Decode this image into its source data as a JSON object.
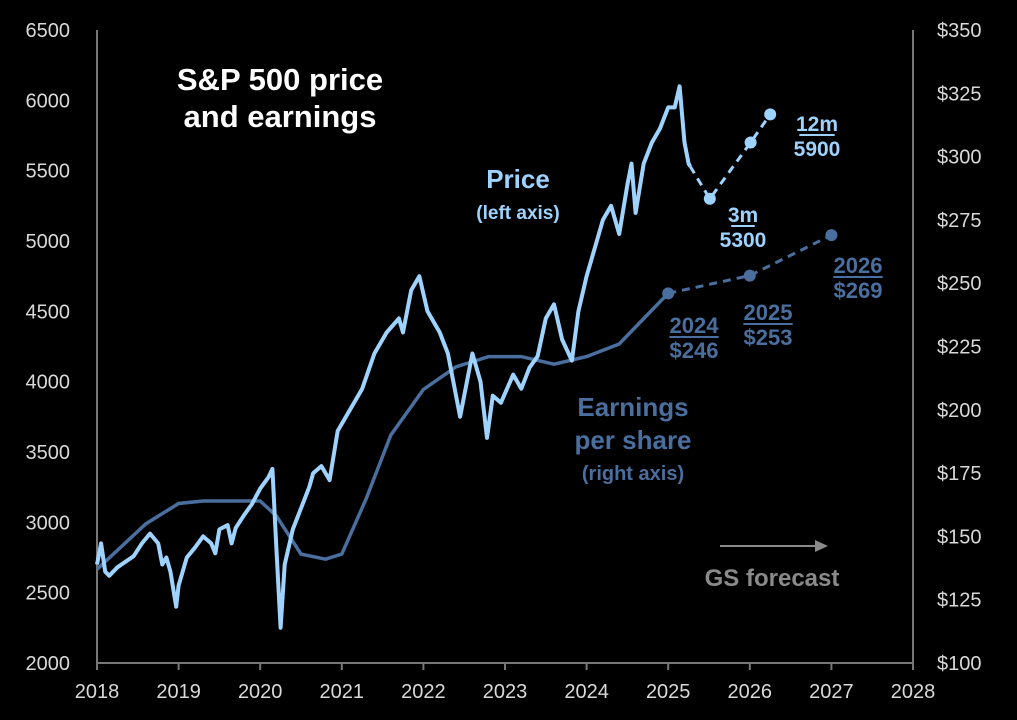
{
  "chart_data": {
    "type": "line",
    "title": [
      "S&P 500 price",
      "and earnings"
    ],
    "x_axis": {
      "min": 2018,
      "max": 2028,
      "ticks": [
        "2018",
        "2019",
        "2020",
        "2021",
        "2022",
        "2023",
        "2024",
        "2025",
        "2026",
        "2027",
        "2028"
      ]
    },
    "left_axis": {
      "min": 2000,
      "max": 6500,
      "ticks": [
        "2000",
        "2500",
        "3000",
        "3500",
        "4000",
        "4500",
        "5000",
        "5500",
        "6000",
        "6500"
      ]
    },
    "right_axis": {
      "min": 100,
      "max": 350,
      "ticks": [
        "$100",
        "$125",
        "$150",
        "$175",
        "$200",
        "$225",
        "$250",
        "$275",
        "$300",
        "$325",
        "$350"
      ]
    },
    "grid": false,
    "series": [
      {
        "name": "Price",
        "sublabel": "(left axis)",
        "axis": "left",
        "color": "#9fd3ff",
        "x": [
          2018.0,
          2018.05,
          2018.1,
          2018.15,
          2018.25,
          2018.35,
          2018.45,
          2018.55,
          2018.65,
          2018.75,
          2018.8,
          2018.85,
          2018.9,
          2018.97,
          2019.0,
          2019.1,
          2019.2,
          2019.3,
          2019.4,
          2019.45,
          2019.5,
          2019.6,
          2019.65,
          2019.7,
          2019.8,
          2019.9,
          2020.0,
          2020.1,
          2020.15,
          2020.2,
          2020.25,
          2020.3,
          2020.4,
          2020.5,
          2020.6,
          2020.65,
          2020.75,
          2020.85,
          2020.95,
          2021.1,
          2021.25,
          2021.4,
          2021.55,
          2021.7,
          2021.75,
          2021.85,
          2021.95,
          2022.05,
          2022.2,
          2022.3,
          2022.45,
          2022.5,
          2022.6,
          2022.7,
          2022.78,
          2022.85,
          2022.95,
          2023.1,
          2023.2,
          2023.3,
          2023.4,
          2023.5,
          2023.6,
          2023.7,
          2023.82,
          2023.9,
          2024.0,
          2024.1,
          2024.2,
          2024.3,
          2024.4,
          2024.5,
          2024.55,
          2024.6,
          2024.7,
          2024.8,
          2024.9,
          2025.0,
          2025.08,
          2025.14,
          2025.2,
          2025.25,
          2025.27
        ],
        "y": [
          2700,
          2850,
          2650,
          2620,
          2680,
          2720,
          2760,
          2850,
          2920,
          2850,
          2700,
          2750,
          2650,
          2400,
          2550,
          2750,
          2820,
          2900,
          2850,
          2780,
          2950,
          2980,
          2850,
          2960,
          3050,
          3130,
          3240,
          3320,
          3380,
          2800,
          2250,
          2700,
          2950,
          3100,
          3250,
          3350,
          3400,
          3300,
          3650,
          3800,
          3950,
          4200,
          4350,
          4450,
          4350,
          4650,
          4750,
          4500,
          4350,
          4200,
          3750,
          3900,
          4200,
          4000,
          3600,
          3900,
          3850,
          4050,
          3950,
          4100,
          4180,
          4450,
          4550,
          4300,
          4150,
          4500,
          4750,
          4950,
          5150,
          5250,
          5050,
          5400,
          5550,
          5200,
          5550,
          5700,
          5800,
          5950,
          5950,
          6100,
          5700,
          5550,
          5530
        ]
      },
      {
        "name": "Earnings per share",
        "sublabel": "(right axis)",
        "axis": "right",
        "color": "#4a6e9e",
        "x": [
          2018.0,
          2018.3,
          2018.6,
          2019.0,
          2019.3,
          2019.7,
          2020.0,
          2020.2,
          2020.5,
          2020.8,
          2021.0,
          2021.3,
          2021.6,
          2022.0,
          2022.4,
          2022.8,
          2023.2,
          2023.6,
          2024.0,
          2024.4,
          2024.7,
          2025.0
        ],
        "y": [
          137,
          146,
          155,
          163,
          164,
          164,
          164,
          158,
          143,
          141,
          143,
          165,
          190,
          208,
          217,
          221,
          221,
          218,
          221,
          226,
          236,
          246
        ]
      }
    ],
    "forecasts": {
      "label": "GS forecast",
      "price": {
        "x": [
          2025.27,
          2025.51,
          2026.01,
          2026.25
        ],
        "y": [
          5530,
          5300,
          5700,
          5900
        ],
        "labels": [
          {
            "top": "3m",
            "bottom": "5300"
          },
          {
            "top": "12m",
            "bottom": "5900"
          }
        ]
      },
      "eps": {
        "x": [
          2025.0,
          2026.0,
          2027.0
        ],
        "y": [
          246,
          253,
          269
        ],
        "labels": [
          {
            "top": "2024",
            "bottom": "$246"
          },
          {
            "top": "2025",
            "bottom": "$253"
          },
          {
            "top": "2026",
            "bottom": "$269"
          }
        ]
      }
    },
    "legend": "inline labels"
  }
}
